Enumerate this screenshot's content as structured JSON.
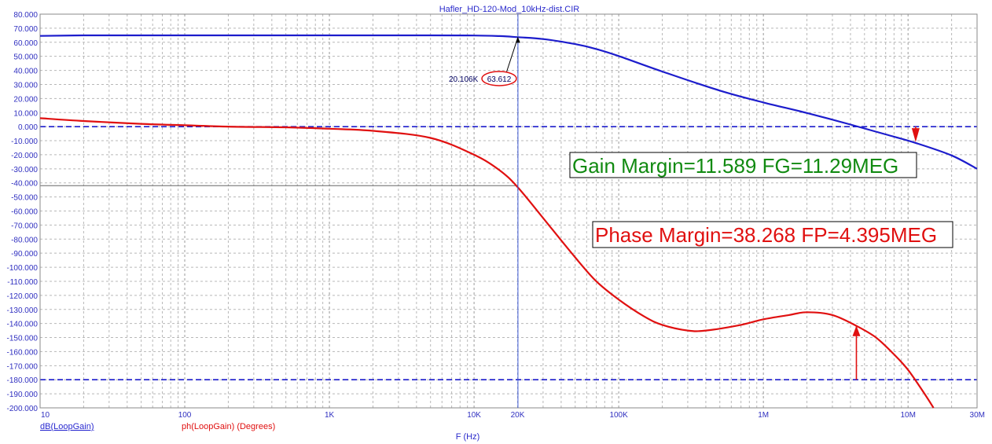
{
  "chart_data": {
    "type": "line",
    "title": "Hafler_HD-120-Mod_10kHz-dist.CIR",
    "xlabel": "F (Hz)",
    "xscale": "log",
    "xlim": [
      10,
      30000000
    ],
    "ylim": [
      -200,
      80
    ],
    "grid": true,
    "y_ticks": [
      "80.000",
      "70.000",
      "60.000",
      "50.000",
      "40.000",
      "30.000",
      "20.000",
      "10.000",
      "0.000",
      "-10.000",
      "-20.000",
      "-30.000",
      "-40.000",
      "-50.000",
      "-60.000",
      "-70.000",
      "-80.000",
      "-90.000",
      "-100.000",
      "-110.000",
      "-120.000",
      "-130.000",
      "-140.000",
      "-150.000",
      "-160.000",
      "-170.000",
      "-180.000",
      "-190.000",
      "-200.000"
    ],
    "x_ticks": [
      {
        "value": 10,
        "label": "10"
      },
      {
        "value": 100,
        "label": "100"
      },
      {
        "value": 1000,
        "label": "1K"
      },
      {
        "value": 10000,
        "label": "10K"
      },
      {
        "value": 20000,
        "label": "20K"
      },
      {
        "value": 100000,
        "label": "100K"
      },
      {
        "value": 1000000,
        "label": "1M"
      },
      {
        "value": 10000000,
        "label": "10M"
      },
      {
        "value": 30000000,
        "label": "30M"
      }
    ],
    "series": [
      {
        "name": "dB(LoopGain)",
        "color": "#1c1ccc",
        "x": [
          10,
          20,
          50,
          100,
          1000,
          5000,
          10000,
          15000,
          20106,
          30000,
          50000,
          70000,
          100000,
          200000,
          500000,
          1000000,
          2000000,
          4000000,
          7000000,
          11290000,
          20000000,
          30000000
        ],
        "y": [
          64.5,
          64.9,
          64.9,
          64.9,
          64.9,
          64.9,
          64.8,
          64.4,
          63.6,
          62.3,
          58.7,
          55.2,
          50.2,
          39.2,
          25.6,
          17.2,
          9.7,
          1.5,
          -5.5,
          -11.6,
          -20.5,
          -30
        ]
      },
      {
        "name": "ph(LoopGain) (Degrees)",
        "color": "#e01010",
        "x": [
          10,
          20,
          50,
          100,
          200,
          500,
          1000,
          2000,
          5000,
          10000,
          15000,
          20000,
          30000,
          50000,
          70000,
          100000,
          150000,
          200000,
          300000,
          400000,
          700000,
          1000000,
          1500000,
          2000000,
          3000000,
          4395000,
          6000000,
          8000000,
          10000000,
          13000000,
          15000000
        ],
        "y": [
          6,
          4,
          2,
          1,
          0,
          -0.5,
          -1.5,
          -3,
          -8,
          -20,
          -31,
          -43,
          -65,
          -93,
          -110,
          -123,
          -135,
          -141,
          -145,
          -145,
          -141,
          -137,
          -134,
          -132,
          -134,
          -141.7,
          -150,
          -162,
          -173,
          -190,
          -200
        ]
      }
    ],
    "reference_lines": [
      {
        "axis": "y",
        "value": 0
      },
      {
        "axis": "y",
        "value": -180
      }
    ],
    "cursor": {
      "x": 20106,
      "y": 63.612,
      "x_label": "20.106K",
      "y_label": "63.612"
    },
    "annotations": {
      "gain_margin": "Gain Margin=11.589 FG=11.29MEG",
      "phase_margin": "Phase Margin=38.268 FP=4.395MEG"
    },
    "legend": [
      "dB(LoopGain)",
      "ph(LoopGain) (Degrees)"
    ]
  },
  "colors": {
    "gain": "#1c1ccc",
    "phase": "#e01010",
    "annotation_green": "#118a11",
    "axis_text": "#3030c0"
  }
}
